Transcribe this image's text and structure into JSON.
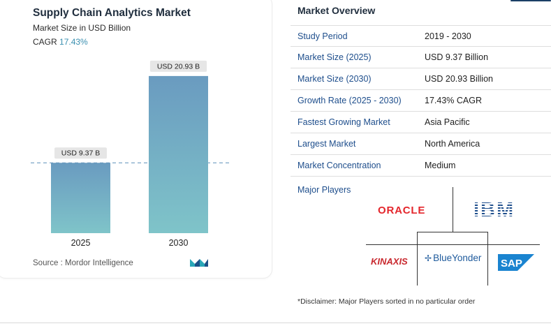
{
  "header": {
    "title": "Supply Chain Analytics Market",
    "subtitle": "Market Size in USD Billion",
    "cagr_label": "CAGR",
    "cagr_value": "17.43%"
  },
  "chart_data": {
    "type": "bar",
    "title": "Supply Chain Analytics Market",
    "ylabel": "Market Size in USD Billion",
    "xlabel": "",
    "categories": [
      "2025",
      "2030"
    ],
    "values": [
      9.37,
      20.93
    ],
    "data_labels": [
      "USD 9.37 B",
      "USD 20.93 B"
    ],
    "ylim": [
      0,
      22.5
    ],
    "grid": false,
    "reference_line": 9.37
  },
  "source": {
    "label": "Source :",
    "value": "Mordor Intelligence"
  },
  "overview": {
    "title": "Market Overview",
    "rows": [
      {
        "label": "Study Period",
        "value": "2019 - 2030"
      },
      {
        "label": "Market Size (2025)",
        "value": "USD 9.37 Billion"
      },
      {
        "label": "Market Size (2030)",
        "value": "USD 20.93 Billion"
      },
      {
        "label": "Growth Rate (2025 - 2030)",
        "value": "17.43% CAGR"
      },
      {
        "label": "Fastest Growing Market",
        "value": "Asia Pacific"
      },
      {
        "label": "Largest Market",
        "value": "North America"
      },
      {
        "label": "Market Concentration",
        "value": "Medium"
      }
    ],
    "players_label": "Major Players",
    "players": [
      "ORACLE",
      "IBM",
      "KINAXIS",
      "BlueYonder",
      "SAP"
    ],
    "disclaimer": "*Disclaimer: Major Players sorted in no particular order"
  },
  "colors": {
    "bar_top": "#6a9bc0",
    "bar_bottom": "#7fc4c9",
    "label_bg": "#e6e6e6",
    "link_blue": "#1e4e8c",
    "oracle_red": "#e4262c",
    "sap_blue": "#1a84d0"
  }
}
